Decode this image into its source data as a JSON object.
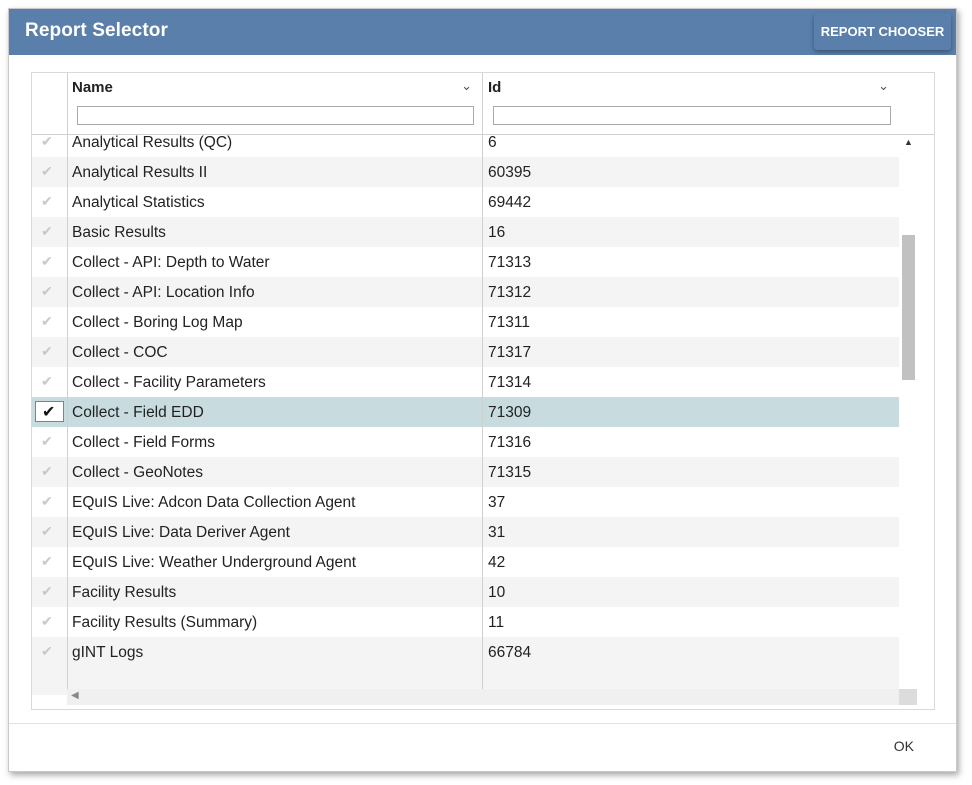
{
  "dialog": {
    "title": "Report Selector",
    "chooser_button": "REPORT CHOOSER",
    "ok_button": "OK"
  },
  "grid": {
    "columns": [
      {
        "label": "Name",
        "filter_value": ""
      },
      {
        "label": "Id",
        "filter_value": ""
      }
    ],
    "rows": [
      {
        "name": "Analytical Results (QC)",
        "id": "6",
        "selected": false
      },
      {
        "name": "Analytical Results II",
        "id": "60395",
        "selected": false
      },
      {
        "name": "Analytical Statistics",
        "id": "69442",
        "selected": false
      },
      {
        "name": "Basic Results",
        "id": "16",
        "selected": false
      },
      {
        "name": "Collect - API: Depth to Water",
        "id": "71313",
        "selected": false
      },
      {
        "name": "Collect - API: Location Info",
        "id": "71312",
        "selected": false
      },
      {
        "name": "Collect - Boring Log Map",
        "id": "71311",
        "selected": false
      },
      {
        "name": "Collect - COC",
        "id": "71317",
        "selected": false
      },
      {
        "name": "Collect - Facility Parameters",
        "id": "71314",
        "selected": false
      },
      {
        "name": "Collect - Field EDD",
        "id": "71309",
        "selected": true
      },
      {
        "name": "Collect - Field Forms",
        "id": "71316",
        "selected": false
      },
      {
        "name": "Collect - GeoNotes",
        "id": "71315",
        "selected": false
      },
      {
        "name": "EQuIS Live: Adcon Data Collection Agent",
        "id": "37",
        "selected": false
      },
      {
        "name": "EQuIS Live: Data Deriver Agent",
        "id": "31",
        "selected": false
      },
      {
        "name": "EQuIS Live: Weather Underground Agent",
        "id": "42",
        "selected": false
      },
      {
        "name": "Facility Results",
        "id": "10",
        "selected": false
      },
      {
        "name": "Facility Results (Summary)",
        "id": "11",
        "selected": false
      },
      {
        "name": "gINT Logs",
        "id": "66784",
        "selected": false
      }
    ]
  },
  "colors": {
    "titlebar": "#5a7fab",
    "selected_row": "#c8dce0"
  },
  "icons": {
    "row_check": "check-icon",
    "column_menu": "chevron-down-icon"
  }
}
